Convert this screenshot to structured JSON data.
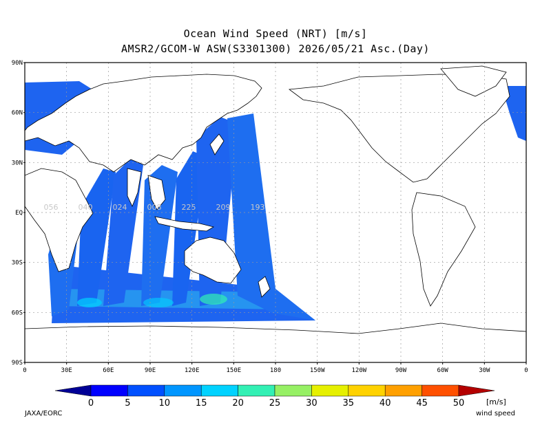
{
  "title_line1": "Ocean Wind Speed (NRT) [m/s]",
  "title_line2": "AMSR2/GCOM-W ASW(S3301300) 2026/05/21 Asc.(Day)",
  "lat_ticks": [
    "90N",
    "60N",
    "30N",
    "EQ",
    "30S",
    "60S",
    "90S"
  ],
  "lon_ticks": [
    "0",
    "30E",
    "60E",
    "90E",
    "120E",
    "150E",
    "180",
    "150W",
    "120W",
    "90W",
    "60W",
    "30W",
    "0"
  ],
  "pass_labels": [
    "056",
    "040",
    "024",
    "008",
    "225",
    "209",
    "193"
  ],
  "colorbar": {
    "ticks": [
      "0",
      "5",
      "10",
      "15",
      "20",
      "25",
      "30",
      "35",
      "40",
      "45",
      "50"
    ],
    "colors": [
      "#0000ff",
      "#0050ff",
      "#0096ff",
      "#00d2ff",
      "#32f0b4",
      "#96f064",
      "#e6f000",
      "#ffd200",
      "#ffa000",
      "#ff5000",
      "#ff0000"
    ],
    "low_color": "#000096",
    "high_color": "#b40000",
    "unit": "[m/s]",
    "quantity": "wind speed"
  },
  "credit": "JAXA/EORC"
}
